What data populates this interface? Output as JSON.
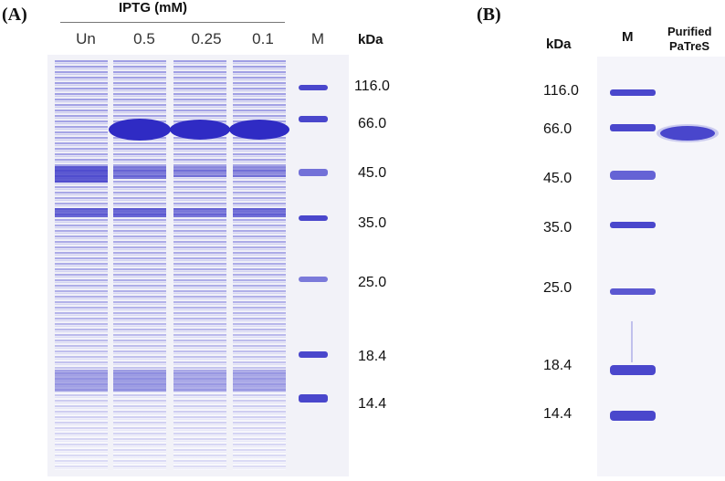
{
  "panelA": {
    "label": "(A)",
    "iptg_header": "IPTG (mM)",
    "lanes": [
      "Un",
      "0.5",
      "0.25",
      "0.1"
    ],
    "marker_lane": "M",
    "kda": "kDa",
    "mw": [
      "116.0",
      "66.0",
      "45.0",
      "35.0",
      "25.0",
      "18.4",
      "14.4"
    ]
  },
  "panelB": {
    "label": "(B)",
    "kda": "kDa",
    "marker_lane": "M",
    "purified_line1": "Purified",
    "purified_line2": "PaTreS",
    "mw": [
      "116.0",
      "66.0",
      "45.0",
      "35.0",
      "25.0",
      "18.4",
      "14.4"
    ]
  },
  "colors": {
    "gel_background": "#f1f1f7",
    "band_dark": "#3b37c8",
    "band_mid": "#6b6ad6",
    "band_light": "#c9c9ee"
  }
}
